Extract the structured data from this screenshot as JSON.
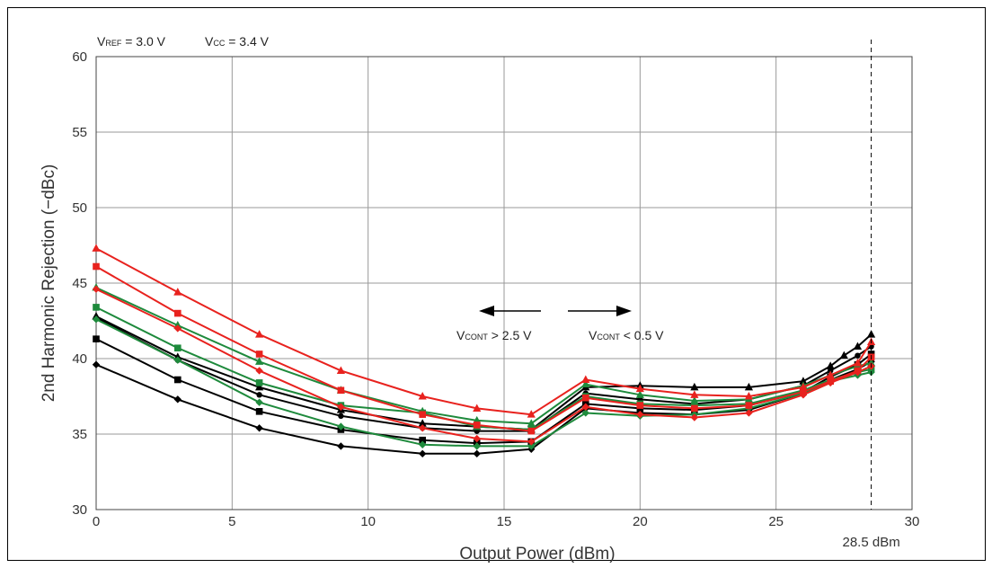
{
  "chart_data": {
    "type": "line",
    "xlabel": "Output Power (dBm)",
    "ylabel": "2nd Harmonic Rejection (−dBc)",
    "xlim": [
      0,
      30
    ],
    "ylim": [
      30,
      60
    ],
    "x_ticks": [
      "0",
      "5",
      "10",
      "15",
      "20",
      "25",
      "30"
    ],
    "y_ticks": [
      "30",
      "35",
      "40",
      "45",
      "50",
      "55",
      "60"
    ],
    "grid": true,
    "header_note": {
      "vref_main": "V",
      "vref_sub": "REF",
      "vref_value": " = 3.0 V",
      "vcc_main": "V",
      "vcc_sub": "CC",
      "vcc_value": " = 3.4 V"
    },
    "region_left": {
      "main": "V",
      "sub": "CONT",
      "text": " > 2.5 V"
    },
    "region_right": {
      "main": "V",
      "sub": "CONT",
      "text": " < 0.5 V"
    },
    "marker_line": {
      "x": 28.5,
      "label": "28.5 dBm"
    },
    "colors": {
      "black": "#000000",
      "green": "#1e8a3c",
      "red": "#e8221e",
      "grid": "#999999"
    },
    "series": [
      {
        "color": "black",
        "marker": "diamond",
        "x": [
          0,
          3,
          6,
          9,
          12,
          14,
          16,
          18,
          20,
          22,
          24,
          26,
          27,
          28,
          28.5
        ],
        "y": [
          39.6,
          37.3,
          35.4,
          34.2,
          33.7,
          33.7,
          34.0,
          36.7,
          36.4,
          36.3,
          36.6,
          37.7,
          38.6,
          39.3,
          39.8
        ]
      },
      {
        "color": "black",
        "marker": "square",
        "x": [
          0,
          3,
          6,
          9,
          12,
          14,
          16,
          18,
          20,
          22,
          24,
          26,
          27,
          28,
          28.5
        ],
        "y": [
          41.3,
          38.6,
          36.5,
          35.3,
          34.6,
          34.4,
          34.5,
          37.0,
          36.7,
          36.6,
          36.9,
          37.8,
          38.8,
          39.6,
          40.3
        ]
      },
      {
        "color": "black",
        "marker": "circle",
        "x": [
          0,
          3,
          6,
          9,
          12,
          14,
          16,
          18,
          20,
          22,
          24,
          26,
          27,
          28,
          28.5
        ],
        "y": [
          42.7,
          39.9,
          37.6,
          36.2,
          35.4,
          35.2,
          35.2,
          37.7,
          37.3,
          37.0,
          37.3,
          38.2,
          39.2,
          40.2,
          40.8
        ]
      },
      {
        "color": "black",
        "marker": "triangle",
        "x": [
          0,
          3,
          6,
          9,
          12,
          14,
          16,
          18,
          20,
          22,
          24,
          26,
          27,
          27.5,
          28,
          28.5
        ],
        "y": [
          42.8,
          40.1,
          38.1,
          36.6,
          35.7,
          35.5,
          35.3,
          38.1,
          38.2,
          38.1,
          38.1,
          38.5,
          39.5,
          40.2,
          40.8,
          41.6
        ]
      },
      {
        "color": "green",
        "marker": "diamond",
        "x": [
          0,
          3,
          6,
          9,
          12,
          14,
          16,
          18,
          20,
          22,
          24,
          26,
          27,
          28,
          28.5
        ],
        "y": [
          42.6,
          39.9,
          37.1,
          35.5,
          34.3,
          34.2,
          34.2,
          36.4,
          36.2,
          36.3,
          36.7,
          37.7,
          38.5,
          38.9,
          39.1
        ]
      },
      {
        "color": "green",
        "marker": "square",
        "x": [
          0,
          3,
          6,
          9,
          12,
          14,
          16,
          18,
          20,
          22,
          24,
          26,
          27,
          28,
          28.5
        ],
        "y": [
          43.4,
          40.7,
          38.4,
          36.9,
          36.4,
          35.5,
          35.3,
          37.5,
          37.0,
          36.9,
          37.0,
          37.9,
          38.6,
          39.1,
          39.3
        ]
      },
      {
        "color": "green",
        "marker": "triangle",
        "x": [
          0,
          3,
          6,
          9,
          12,
          14,
          16,
          18,
          20,
          22,
          24,
          26,
          27,
          28,
          28.5
        ],
        "y": [
          44.7,
          42.2,
          39.8,
          37.9,
          36.5,
          35.9,
          35.7,
          38.3,
          37.6,
          37.2,
          37.3,
          38.2,
          38.9,
          39.5,
          39.7
        ]
      },
      {
        "color": "red",
        "marker": "diamond",
        "x": [
          0,
          3,
          6,
          9,
          12,
          14,
          16,
          18,
          20,
          22,
          24,
          26,
          27,
          28,
          28.5
        ],
        "y": [
          44.6,
          42.0,
          39.2,
          36.8,
          35.4,
          34.7,
          34.5,
          36.8,
          36.3,
          36.1,
          36.4,
          37.6,
          38.4,
          39.1,
          39.5
        ]
      },
      {
        "color": "red",
        "marker": "square",
        "x": [
          0,
          3,
          6,
          9,
          12,
          14,
          16,
          18,
          20,
          22,
          24,
          26,
          27,
          28,
          28.5
        ],
        "y": [
          46.1,
          43.0,
          40.3,
          37.9,
          36.3,
          35.6,
          35.2,
          37.4,
          36.9,
          36.7,
          36.9,
          37.8,
          38.5,
          39.2,
          40.1
        ]
      },
      {
        "color": "red",
        "marker": "triangle",
        "x": [
          0,
          3,
          6,
          9,
          12,
          14,
          16,
          18,
          20,
          22,
          24,
          26,
          27,
          28,
          28.5
        ],
        "y": [
          47.3,
          44.4,
          41.6,
          39.2,
          37.5,
          36.7,
          36.3,
          38.6,
          38.0,
          37.6,
          37.5,
          38.1,
          38.9,
          39.7,
          41.1
        ]
      }
    ]
  }
}
